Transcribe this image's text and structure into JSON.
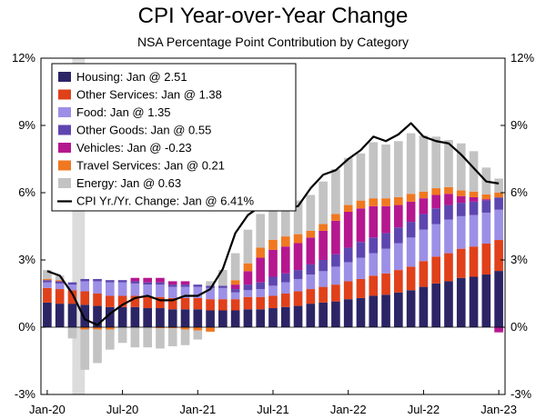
{
  "chart_data": {
    "type": "bar",
    "title": "CPI Year-over-Year Change",
    "subtitle": "NSA Percentage Point Contribution by Category",
    "y_ticks": [
      "12%",
      "9%",
      "6%",
      "3%",
      "0%",
      "-3%"
    ],
    "x_ticks": [
      "Jan-20",
      "Jul-20",
      "Jan-21",
      "Jul-21",
      "Jan-22",
      "Jul-22",
      "Jan-23"
    ],
    "ylim": [
      -3,
      12
    ],
    "months": [
      "Jan-20",
      "Feb-20",
      "Mar-20",
      "Apr-20",
      "May-20",
      "Jun-20",
      "Jul-20",
      "Aug-20",
      "Sep-20",
      "Oct-20",
      "Nov-20",
      "Dec-20",
      "Jan-21",
      "Feb-21",
      "Mar-21",
      "Apr-21",
      "May-21",
      "Jun-21",
      "Jul-21",
      "Aug-21",
      "Sep-21",
      "Oct-21",
      "Nov-21",
      "Dec-21",
      "Jan-22",
      "Feb-22",
      "Mar-22",
      "Apr-22",
      "May-22",
      "Jun-22",
      "Jul-22",
      "Aug-22",
      "Sep-22",
      "Oct-22",
      "Nov-22",
      "Dec-22",
      "Jan-23"
    ],
    "recession_shading": {
      "start": "Mar-20",
      "end": "Apr-20"
    },
    "series": [
      {
        "name": "Housing: Jan @ 2.51",
        "color": "#2b2566",
        "values": [
          1.1,
          1.05,
          1.05,
          1.0,
          0.95,
          0.9,
          0.9,
          0.9,
          0.85,
          0.85,
          0.8,
          0.8,
          0.8,
          0.75,
          0.75,
          0.75,
          0.8,
          0.8,
          0.85,
          0.9,
          0.95,
          1.05,
          1.1,
          1.15,
          1.25,
          1.3,
          1.4,
          1.45,
          1.55,
          1.65,
          1.8,
          1.95,
          2.05,
          2.2,
          2.25,
          2.35,
          2.51
        ]
      },
      {
        "name": "Other Services: Jan @ 1.38",
        "color": "#e0401a",
        "values": [
          0.65,
          0.65,
          0.6,
          0.6,
          0.55,
          0.5,
          0.5,
          0.5,
          0.5,
          0.5,
          0.5,
          0.5,
          0.5,
          0.5,
          0.5,
          0.5,
          0.55,
          0.55,
          0.55,
          0.6,
          0.65,
          0.65,
          0.7,
          0.75,
          0.8,
          0.85,
          0.9,
          0.95,
          1.0,
          1.05,
          1.15,
          1.2,
          1.25,
          1.3,
          1.35,
          1.38,
          1.38
        ]
      },
      {
        "name": "Food: Jan @ 1.35",
        "color": "#9c8fe6",
        "values": [
          0.25,
          0.25,
          0.25,
          0.45,
          0.55,
          0.6,
          0.6,
          0.55,
          0.55,
          0.55,
          0.5,
          0.5,
          0.5,
          0.5,
          0.5,
          0.3,
          0.3,
          0.35,
          0.45,
          0.5,
          0.55,
          0.65,
          0.7,
          0.8,
          0.85,
          0.95,
          1.0,
          1.1,
          1.2,
          1.3,
          1.4,
          1.45,
          1.5,
          1.45,
          1.4,
          1.38,
          1.35
        ]
      },
      {
        "name": "Other Goods: Jan @ 0.55",
        "color": "#5e46b0",
        "values": [
          0.1,
          0.1,
          0.1,
          0.1,
          0.1,
          0.1,
          0.1,
          0.1,
          0.1,
          0.1,
          0.1,
          0.1,
          0.1,
          0.1,
          0.1,
          0.15,
          0.25,
          0.3,
          0.4,
          0.4,
          0.4,
          0.45,
          0.5,
          0.55,
          0.65,
          0.7,
          0.7,
          0.7,
          0.7,
          0.7,
          0.7,
          0.7,
          0.65,
          0.6,
          0.6,
          0.55,
          0.55
        ]
      },
      {
        "name": "Vehicles: Jan @ -0.23",
        "color": "#b5178f",
        "values": [
          0.0,
          0.0,
          0.0,
          0.0,
          0.0,
          0.0,
          0.0,
          0.15,
          0.2,
          0.2,
          0.15,
          0.15,
          0.0,
          0.0,
          0.0,
          0.2,
          0.6,
          1.1,
          1.2,
          1.2,
          1.2,
          1.2,
          1.3,
          1.5,
          1.6,
          1.5,
          1.4,
          1.2,
          1.0,
          0.9,
          0.7,
          0.6,
          0.5,
          0.3,
          0.2,
          0.05,
          -0.23
        ]
      },
      {
        "name": "Travel Services: Jan @ 0.21",
        "color": "#f07820",
        "values": [
          0.05,
          0.05,
          0.0,
          -0.1,
          -0.1,
          -0.1,
          0.0,
          0.0,
          0.0,
          -0.05,
          -0.05,
          -0.1,
          -0.15,
          -0.2,
          0.0,
          0.2,
          0.35,
          0.45,
          0.45,
          0.45,
          0.4,
          0.3,
          0.3,
          0.3,
          0.3,
          0.35,
          0.35,
          0.35,
          0.35,
          0.35,
          0.3,
          0.3,
          0.3,
          0.25,
          0.25,
          0.21,
          0.21
        ]
      },
      {
        "name": "Energy: Jan @ 0.63",
        "color": "#c3c3c3",
        "values": [
          0.4,
          0.2,
          -0.5,
          -1.8,
          -1.5,
          -0.9,
          -0.7,
          -0.9,
          -0.9,
          -0.9,
          -0.8,
          -0.7,
          -0.4,
          0.2,
          0.7,
          1.2,
          1.5,
          1.5,
          1.5,
          1.5,
          1.5,
          1.6,
          1.9,
          2.0,
          2.1,
          2.1,
          2.5,
          2.4,
          2.5,
          2.7,
          2.5,
          2.3,
          2.1,
          2.1,
          1.8,
          1.2,
          0.63
        ]
      }
    ],
    "line": {
      "name": "CPI Yr./Yr. Change: Jan @ 6.41%",
      "color": "#000000",
      "values": [
        2.5,
        2.3,
        1.5,
        0.35,
        0.1,
        0.6,
        1.0,
        1.3,
        1.4,
        1.2,
        1.2,
        1.4,
        1.4,
        1.7,
        2.6,
        4.2,
        5.0,
        5.4,
        5.4,
        5.3,
        5.4,
        6.2,
        6.8,
        7.0,
        7.5,
        7.9,
        8.5,
        8.3,
        8.6,
        9.1,
        8.5,
        8.3,
        8.2,
        7.7,
        7.1,
        6.5,
        6.41
      ]
    }
  }
}
